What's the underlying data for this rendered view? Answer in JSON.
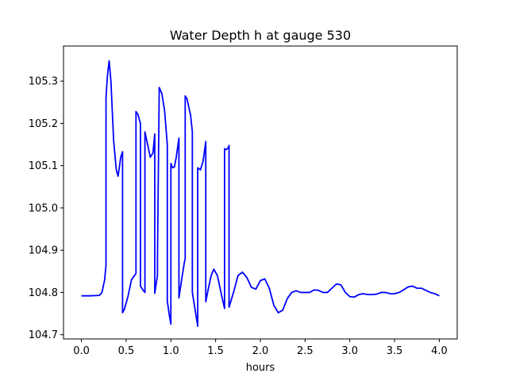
{
  "chart_data": {
    "type": "line",
    "title": "Water Depth h at gauge 530",
    "xlabel": "hours",
    "ylabel": "",
    "xlim": [
      -0.2,
      4.2
    ],
    "ylim": [
      104.69,
      105.383
    ],
    "xticks": [
      0.0,
      0.5,
      1.0,
      1.5,
      2.0,
      2.5,
      3.0,
      3.5,
      4.0
    ],
    "xtick_labels": [
      "0.0",
      "0.5",
      "1.0",
      "1.5",
      "2.0",
      "2.5",
      "3.0",
      "3.5",
      "4.0"
    ],
    "yticks": [
      104.7,
      104.8,
      104.9,
      105.0,
      105.1,
      105.2,
      105.3
    ],
    "ytick_labels": [
      "104.7",
      "104.8",
      "104.9",
      "105.0",
      "105.1",
      "105.2",
      "105.3"
    ],
    "grid": false,
    "series": [
      {
        "color": "#0000ff",
        "x": [
          0.0,
          0.1,
          0.2,
          0.23,
          0.26,
          0.275,
          0.275,
          0.29,
          0.31,
          0.33,
          0.36,
          0.39,
          0.41,
          0.44,
          0.46,
          0.46,
          0.48,
          0.52,
          0.56,
          0.6,
          0.61,
          0.61,
          0.63,
          0.66,
          0.66,
          0.69,
          0.71,
          0.71,
          0.74,
          0.77,
          0.8,
          0.82,
          0.82,
          0.85,
          0.85,
          0.87,
          0.9,
          0.93,
          0.96,
          0.96,
          0.98,
          1.0,
          1.0,
          1.02,
          1.04,
          1.06,
          1.09,
          1.09,
          1.12,
          1.15,
          1.16,
          1.16,
          1.18,
          1.22,
          1.24,
          1.24,
          1.27,
          1.3,
          1.3,
          1.33,
          1.36,
          1.39,
          1.39,
          1.42,
          1.45,
          1.48,
          1.52,
          1.56,
          1.6,
          1.6,
          1.62,
          1.64,
          1.65,
          1.65,
          1.7,
          1.75,
          1.8,
          1.85,
          1.9,
          1.95,
          2.0,
          2.05,
          2.1,
          2.15,
          2.2,
          2.25,
          2.3,
          2.35,
          2.4,
          2.45,
          2.5,
          2.55,
          2.6,
          2.65,
          2.7,
          2.75,
          2.8,
          2.85,
          2.9,
          2.95,
          3.0,
          3.05,
          3.1,
          3.15,
          3.2,
          3.25,
          3.3,
          3.35,
          3.4,
          3.45,
          3.5,
          3.55,
          3.6,
          3.65,
          3.7,
          3.75,
          3.8,
          3.85,
          3.9,
          3.95,
          4.0
        ],
        "y": [
          104.792,
          104.792,
          104.793,
          104.8,
          104.83,
          104.865,
          105.26,
          105.31,
          105.348,
          105.3,
          105.16,
          105.09,
          105.075,
          105.12,
          105.133,
          104.752,
          104.76,
          104.79,
          104.83,
          104.842,
          104.845,
          105.228,
          105.222,
          105.2,
          104.815,
          104.805,
          104.8,
          105.18,
          105.15,
          105.12,
          105.13,
          105.175,
          104.798,
          104.84,
          104.875,
          105.285,
          105.27,
          105.23,
          105.15,
          104.78,
          104.75,
          104.725,
          105.105,
          105.095,
          105.097,
          105.12,
          105.165,
          104.787,
          104.83,
          104.87,
          104.88,
          105.265,
          105.258,
          105.22,
          105.18,
          104.8,
          104.76,
          104.72,
          105.095,
          105.09,
          105.11,
          105.157,
          104.778,
          104.81,
          104.84,
          104.855,
          104.84,
          104.8,
          104.762,
          105.14,
          105.138,
          105.142,
          105.148,
          104.765,
          104.8,
          104.84,
          104.848,
          104.835,
          104.812,
          104.808,
          104.828,
          104.832,
          104.81,
          104.77,
          104.752,
          104.758,
          104.785,
          104.8,
          104.804,
          104.8,
          104.8,
          104.8,
          104.806,
          104.805,
          104.8,
          104.8,
          104.81,
          104.82,
          104.818,
          104.8,
          104.79,
          104.789,
          104.795,
          104.797,
          104.795,
          104.795,
          104.796,
          104.8,
          104.8,
          104.797,
          104.797,
          104.8,
          104.806,
          104.813,
          104.815,
          104.81,
          104.81,
          104.805,
          104.8,
          104.797,
          104.792
        ]
      }
    ]
  }
}
